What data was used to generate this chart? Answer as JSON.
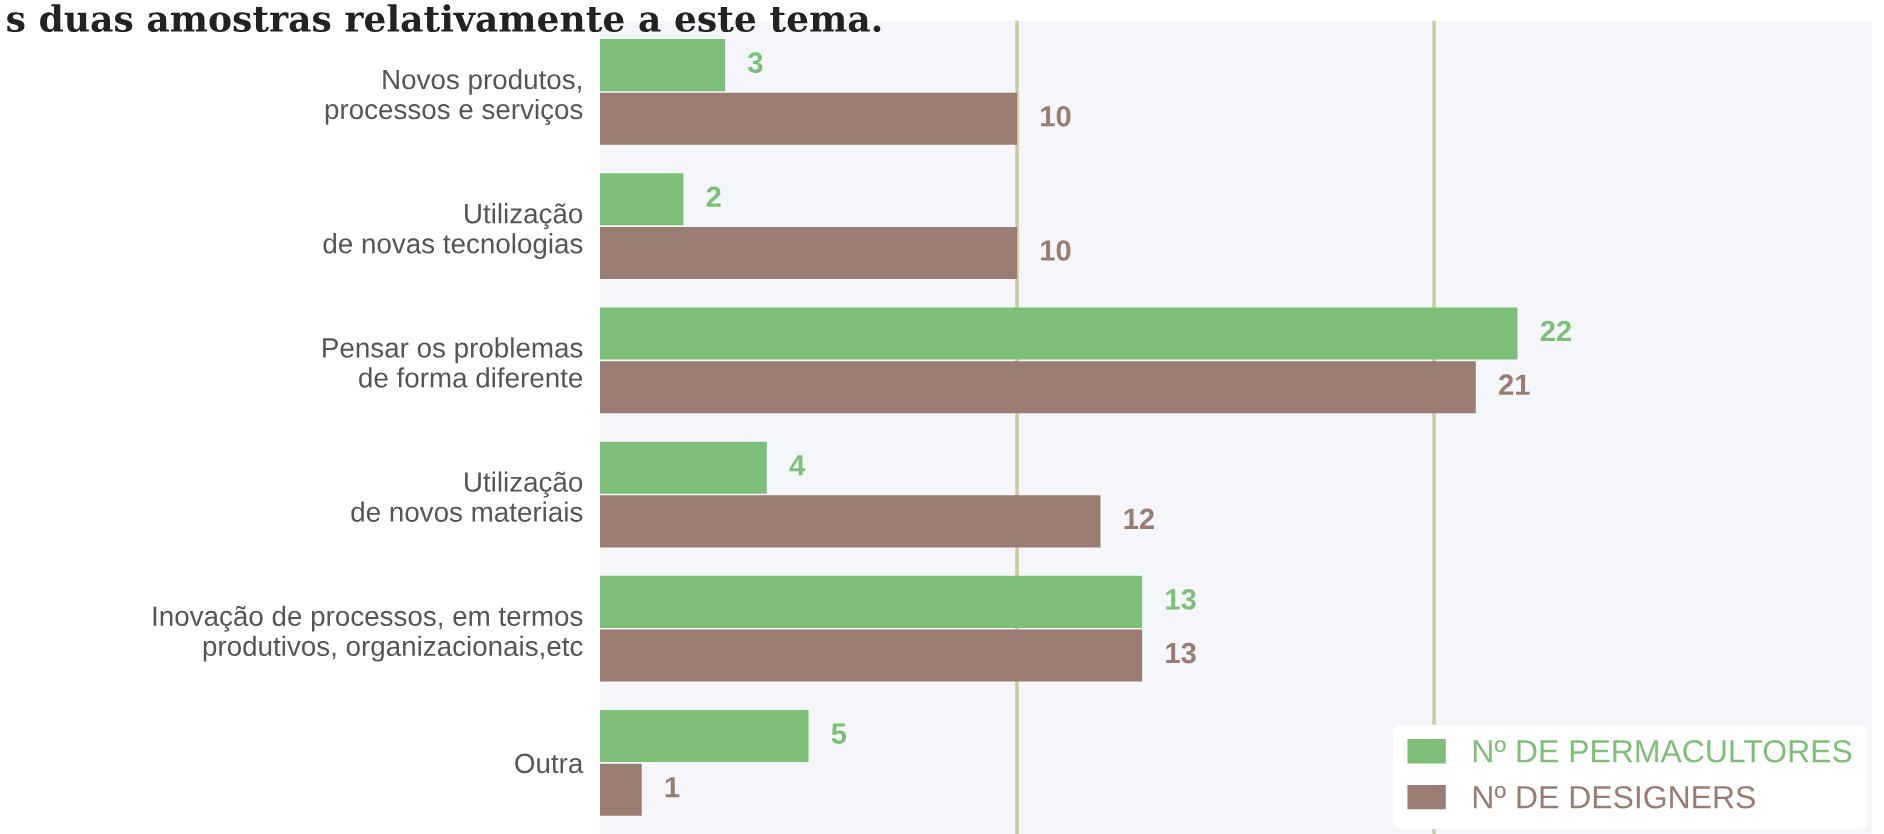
{
  "chart_data": {
    "type": "bar",
    "orientation": "horizontal",
    "title": "s duas amostras relativamente a este tema.",
    "categories": [
      "Novos produtos,\nprocessos e serviços",
      "Utilização\nde novas tecnologias",
      "Pensar os problemas\nde forma diferente",
      "Utilização\nde novos materiais",
      "Inovação de processos, em termos\nprodutivos, organizacionais,etc",
      "Outra"
    ],
    "series": [
      {
        "name": "Nº DE PERMACULTORES",
        "color": "#7dbf78",
        "values": [
          3,
          2,
          22,
          4,
          13,
          5
        ]
      },
      {
        "name": "Nº DE DESIGNERS",
        "color": "#9a7d72",
        "values": [
          10,
          10,
          21,
          12,
          13,
          1
        ]
      }
    ],
    "xlim": [
      0,
      30.5
    ],
    "ref_lines": [
      {
        "axis": "x",
        "value": 10,
        "color": "#cfc9a0"
      },
      {
        "axis": "x",
        "value": 20,
        "color": "#cfc9a0"
      }
    ],
    "data_labels": true,
    "legend": "bottom right",
    "tick_labels": "y"
  }
}
